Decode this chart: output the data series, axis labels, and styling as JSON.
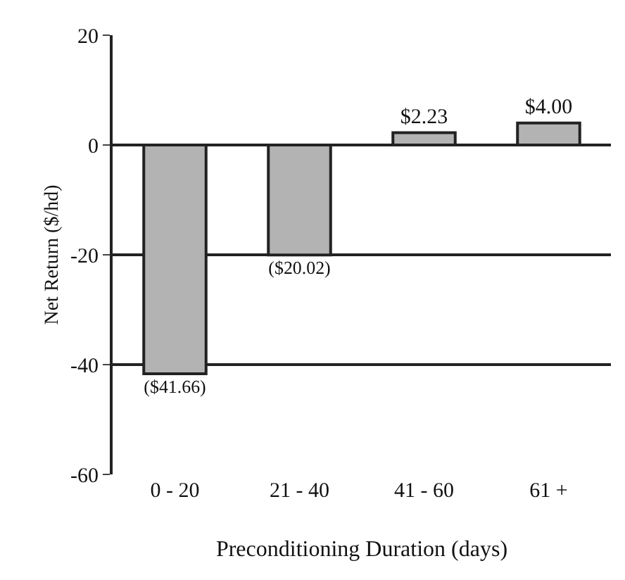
{
  "chart_data": {
    "type": "bar",
    "xlabel": "Preconditioning Duration (days)",
    "ylabel": "Net Return ($/hd)",
    "categories": [
      "0 - 20",
      "21 - 40",
      "41 - 60",
      "61 +"
    ],
    "values": [
      -41.66,
      -20.02,
      2.23,
      4.0
    ],
    "value_labels": [
      "($41.66)",
      "($20.02)",
      "$2.23",
      "$4.00"
    ],
    "color": "#b3b3b3",
    "ylim": [
      -60,
      20
    ],
    "yticks": [
      -60,
      -40,
      -20,
      0,
      20
    ],
    "grid": "y"
  }
}
